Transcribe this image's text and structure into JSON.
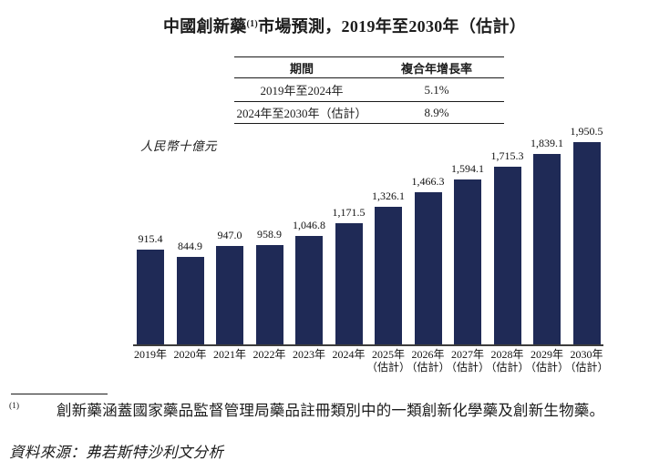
{
  "page": {
    "title": {
      "part1": "中國創新藥",
      "footnote_ref": "(1)",
      "part2": "市場預測，2019年至2030年（估計）"
    },
    "footnote": {
      "marker": "(1)",
      "text": "創新藥涵蓋國家藥品監督管理局藥品註冊類別中的一類創新化學藥及創新生物藥。"
    },
    "source": "資料來源：弗若斯特沙利文分析"
  },
  "chart_data": {
    "type": "bar",
    "title": "中國創新藥(1)市場預測，2019年至2030年（估計）",
    "unit_label": "人民幣十億元",
    "xlabel": "",
    "ylabel": "人民幣十億元",
    "categories": [
      "2019年",
      "2020年",
      "2021年",
      "2022年",
      "2023年",
      "2024年",
      "2025年（估計）",
      "2026年（估計）",
      "2027年（估計）",
      "2028年（估計）",
      "2029年（估計）",
      "2030年（估計）"
    ],
    "estimate_suffix": "（估計）",
    "values": [
      915.4,
      844.9,
      947.0,
      958.9,
      1046.8,
      1171.5,
      1326.1,
      1466.3,
      1594.1,
      1715.3,
      1839.1,
      1950.5
    ],
    "value_labels": [
      "915.4",
      "844.9",
      "947.0",
      "958.9",
      "1,046.8",
      "1,171.5",
      "1,326.1",
      "1,466.3",
      "1,594.1",
      "1,715.3",
      "1,839.1",
      "1,950.5"
    ],
    "ylim": [
      0,
      1950.5
    ],
    "grid": false,
    "legend": false,
    "bar_color": "#1F2A56",
    "cagr_table": {
      "headers": [
        "期間",
        "複合年增長率"
      ],
      "rows": [
        [
          "2019年至2024年",
          "5.1%"
        ],
        [
          "2024年至2030年（估計）",
          "8.9%"
        ]
      ]
    }
  }
}
